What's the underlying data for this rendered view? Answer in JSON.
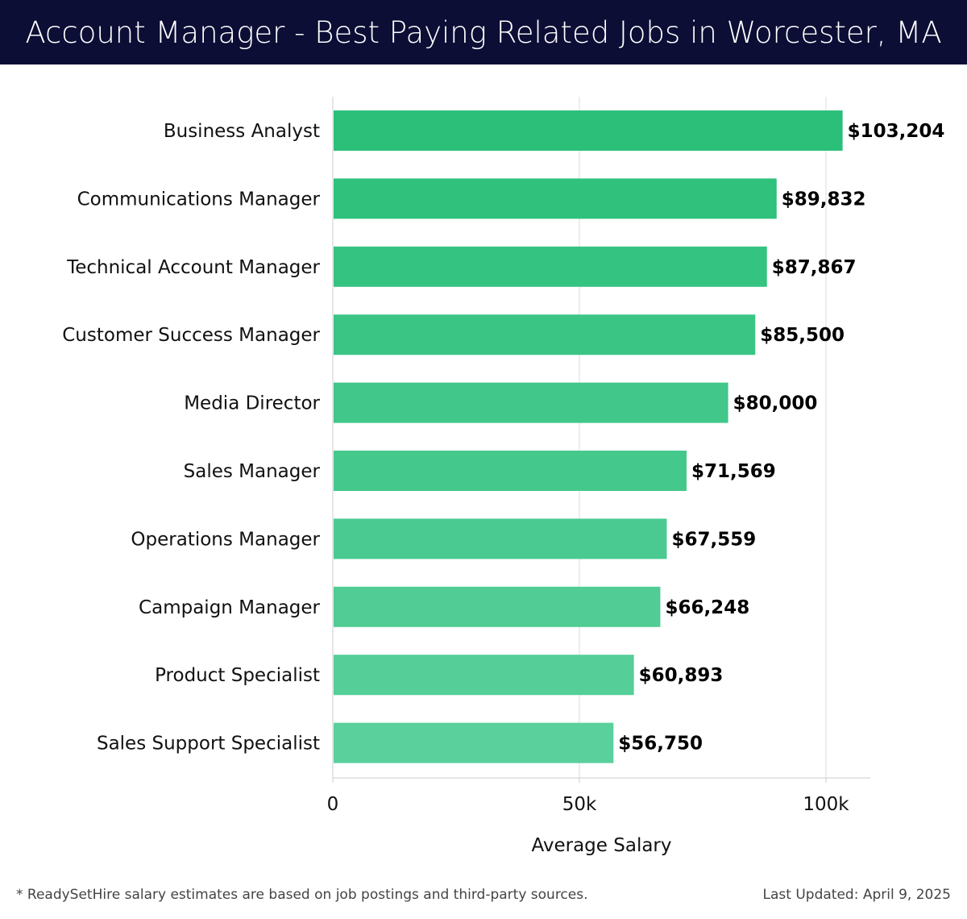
{
  "title": "Account Manager - Best Paying Related Jobs in Worcester, MA",
  "footer": {
    "note": "* ReadySetHire salary estimates are based on job postings and third-party sources.",
    "updated": "Last Updated: April 9, 2025"
  },
  "colors": {
    "title_bg": "#0c0e35",
    "bar_top": "#2bbf79",
    "bar_bottom": "#5ad09c",
    "grid": "#dddddd",
    "label": "#111111"
  },
  "chart_data": {
    "type": "bar",
    "orientation": "horizontal",
    "categories": [
      "Business Analyst",
      "Communications Manager",
      "Technical Account Manager",
      "Customer Success Manager",
      "Media Director",
      "Sales Manager",
      "Operations Manager",
      "Campaign Manager",
      "Product Specialist",
      "Sales Support Specialist"
    ],
    "values": [
      103204,
      89832,
      87867,
      85500,
      80000,
      71569,
      67559,
      66248,
      60893,
      56750
    ],
    "value_labels": [
      "$103,204",
      "$89,832",
      "$87,867",
      "$85,500",
      "$80,000",
      "$71,569",
      "$67,559",
      "$66,248",
      "$60,893",
      "$56,750"
    ],
    "xlabel": "Average Salary",
    "ylabel": "",
    "xlim": [
      0,
      109000
    ],
    "xticks": [
      0,
      50000,
      100000
    ],
    "xtick_labels": [
      "0",
      "50k",
      "100k"
    ],
    "grid": true
  }
}
